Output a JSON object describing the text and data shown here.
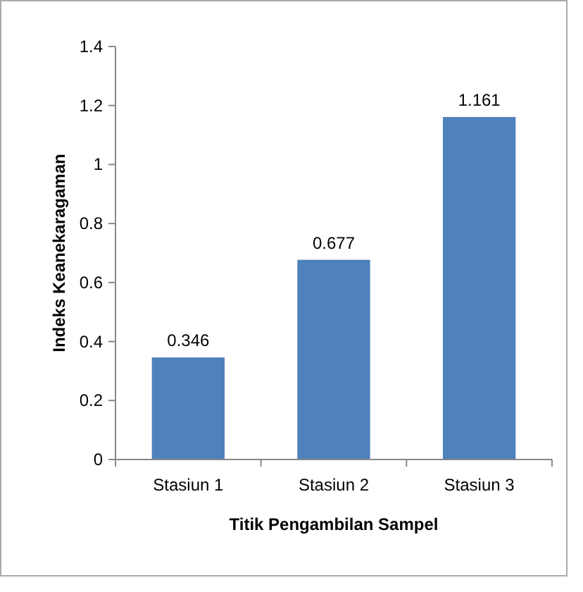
{
  "chart_data": {
    "type": "bar",
    "xlabel": "Titik Pengambilan Sampel",
    "ylabel": "Indeks Keanekaragaman",
    "categories": [
      "Stasiun 1",
      "Stasiun 2",
      "Stasiun 3"
    ],
    "values": [
      0.346,
      0.677,
      1.161
    ],
    "color": "#4f81bd",
    "data_labels": true,
    "ylim": [
      0,
      1.4
    ],
    "yticks": [
      0,
      0.2,
      0.4,
      0.6,
      0.8,
      1,
      1.2,
      1.4
    ],
    "grid": false
  }
}
